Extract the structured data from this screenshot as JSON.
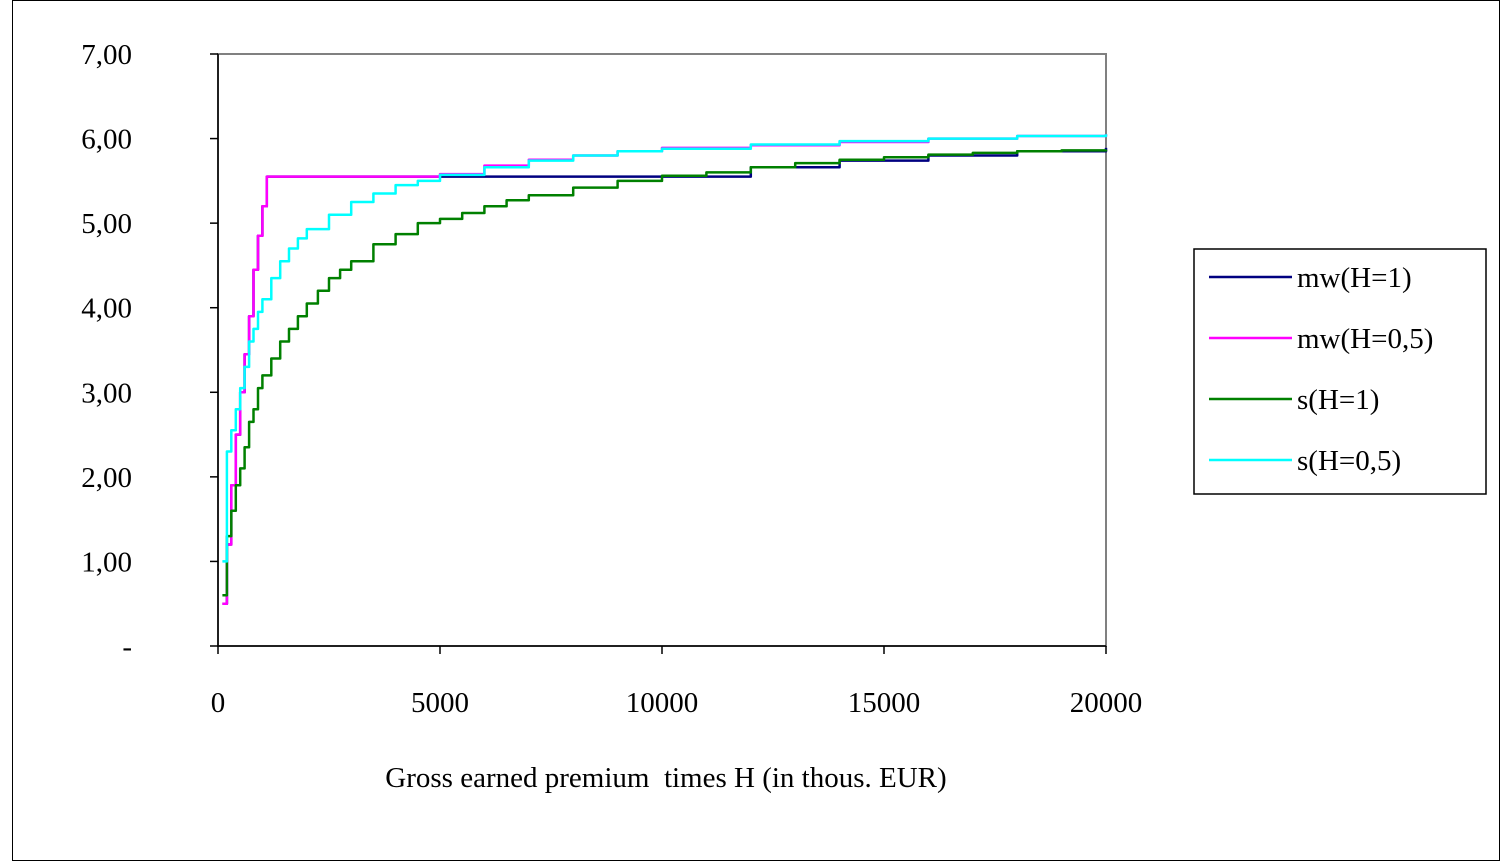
{
  "chart_data": {
    "type": "line",
    "title": "",
    "xlabel": "Gross earned premium  times H (in thous. EUR)",
    "ylabel": "",
    "xlim": [
      0,
      20000
    ],
    "ylim": [
      0,
      7
    ],
    "x_ticks": [
      0,
      5000,
      10000,
      15000,
      20000
    ],
    "x_tick_labels": [
      "0",
      "5000",
      "10000",
      "15000",
      "20000"
    ],
    "y_ticks": [
      0,
      1,
      2,
      3,
      4,
      5,
      6,
      7
    ],
    "y_tick_labels": [
      "-",
      "1,00",
      "2,00",
      "3,00",
      "4,00",
      "5,00",
      "6,00",
      "7,00"
    ],
    "grid": false,
    "legend_position": "right",
    "series": [
      {
        "name": "mw(H=1)",
        "color": "#000080",
        "points": [
          [
            100,
            0.5
          ],
          [
            200,
            1.2
          ],
          [
            300,
            1.9
          ],
          [
            400,
            2.5
          ],
          [
            500,
            3.0
          ],
          [
            600,
            3.45
          ],
          [
            700,
            3.9
          ],
          [
            800,
            4.45
          ],
          [
            900,
            4.85
          ],
          [
            1000,
            5.2
          ],
          [
            1100,
            5.55
          ],
          [
            5000,
            5.55
          ],
          [
            10000,
            5.55
          ],
          [
            12000,
            5.66
          ],
          [
            14000,
            5.74
          ],
          [
            16000,
            5.8
          ],
          [
            18000,
            5.85
          ],
          [
            20000,
            5.89
          ]
        ]
      },
      {
        "name": "mw(H=0,5)",
        "color": "#ff00ff",
        "points": [
          [
            100,
            0.5
          ],
          [
            200,
            1.2
          ],
          [
            300,
            1.9
          ],
          [
            400,
            2.5
          ],
          [
            500,
            3.0
          ],
          [
            600,
            3.45
          ],
          [
            700,
            3.9
          ],
          [
            800,
            4.45
          ],
          [
            900,
            4.85
          ],
          [
            1000,
            5.2
          ],
          [
            1100,
            5.55
          ],
          [
            4000,
            5.55
          ],
          [
            5000,
            5.58
          ],
          [
            6000,
            5.68
          ],
          [
            7000,
            5.75
          ],
          [
            8000,
            5.8
          ],
          [
            9000,
            5.85
          ],
          [
            10000,
            5.89
          ],
          [
            12000,
            5.92
          ],
          [
            14000,
            5.96
          ],
          [
            16000,
            6.0
          ],
          [
            18000,
            6.03
          ],
          [
            20000,
            6.05
          ]
        ]
      },
      {
        "name": "s(H=1)",
        "color": "#008000",
        "points": [
          [
            100,
            0.6
          ],
          [
            200,
            1.3
          ],
          [
            300,
            1.6
          ],
          [
            400,
            1.9
          ],
          [
            500,
            2.1
          ],
          [
            600,
            2.35
          ],
          [
            700,
            2.65
          ],
          [
            800,
            2.8
          ],
          [
            900,
            3.05
          ],
          [
            1000,
            3.2
          ],
          [
            1200,
            3.4
          ],
          [
            1400,
            3.6
          ],
          [
            1600,
            3.75
          ],
          [
            1800,
            3.9
          ],
          [
            2000,
            4.05
          ],
          [
            2250,
            4.2
          ],
          [
            2500,
            4.35
          ],
          [
            2750,
            4.45
          ],
          [
            3000,
            4.55
          ],
          [
            3500,
            4.75
          ],
          [
            4000,
            4.87
          ],
          [
            4500,
            5.0
          ],
          [
            5000,
            5.05
          ],
          [
            5500,
            5.12
          ],
          [
            6000,
            5.2
          ],
          [
            6500,
            5.27
          ],
          [
            7000,
            5.33
          ],
          [
            8000,
            5.42
          ],
          [
            9000,
            5.5
          ],
          [
            10000,
            5.56
          ],
          [
            11000,
            5.6
          ],
          [
            12000,
            5.66
          ],
          [
            13000,
            5.71
          ],
          [
            14000,
            5.75
          ],
          [
            15000,
            5.78
          ],
          [
            16000,
            5.81
          ],
          [
            17000,
            5.83
          ],
          [
            18000,
            5.85
          ],
          [
            19000,
            5.86
          ],
          [
            20000,
            5.87
          ]
        ]
      },
      {
        "name": "s(H=0,5)",
        "color": "#00ffff",
        "points": [
          [
            100,
            1.0
          ],
          [
            200,
            2.3
          ],
          [
            300,
            2.55
          ],
          [
            400,
            2.8
          ],
          [
            500,
            3.05
          ],
          [
            600,
            3.3
          ],
          [
            700,
            3.6
          ],
          [
            800,
            3.75
          ],
          [
            900,
            3.95
          ],
          [
            1000,
            4.1
          ],
          [
            1200,
            4.35
          ],
          [
            1400,
            4.55
          ],
          [
            1600,
            4.7
          ],
          [
            1800,
            4.82
          ],
          [
            2000,
            4.93
          ],
          [
            2500,
            5.1
          ],
          [
            3000,
            5.25
          ],
          [
            3500,
            5.35
          ],
          [
            4000,
            5.45
          ],
          [
            4500,
            5.5
          ],
          [
            5000,
            5.57
          ],
          [
            6000,
            5.66
          ],
          [
            7000,
            5.74
          ],
          [
            8000,
            5.8
          ],
          [
            9000,
            5.85
          ],
          [
            10000,
            5.88
          ],
          [
            12000,
            5.93
          ],
          [
            14000,
            5.97
          ],
          [
            16000,
            6.0
          ],
          [
            18000,
            6.03
          ],
          [
            20000,
            6.05
          ]
        ]
      }
    ]
  }
}
